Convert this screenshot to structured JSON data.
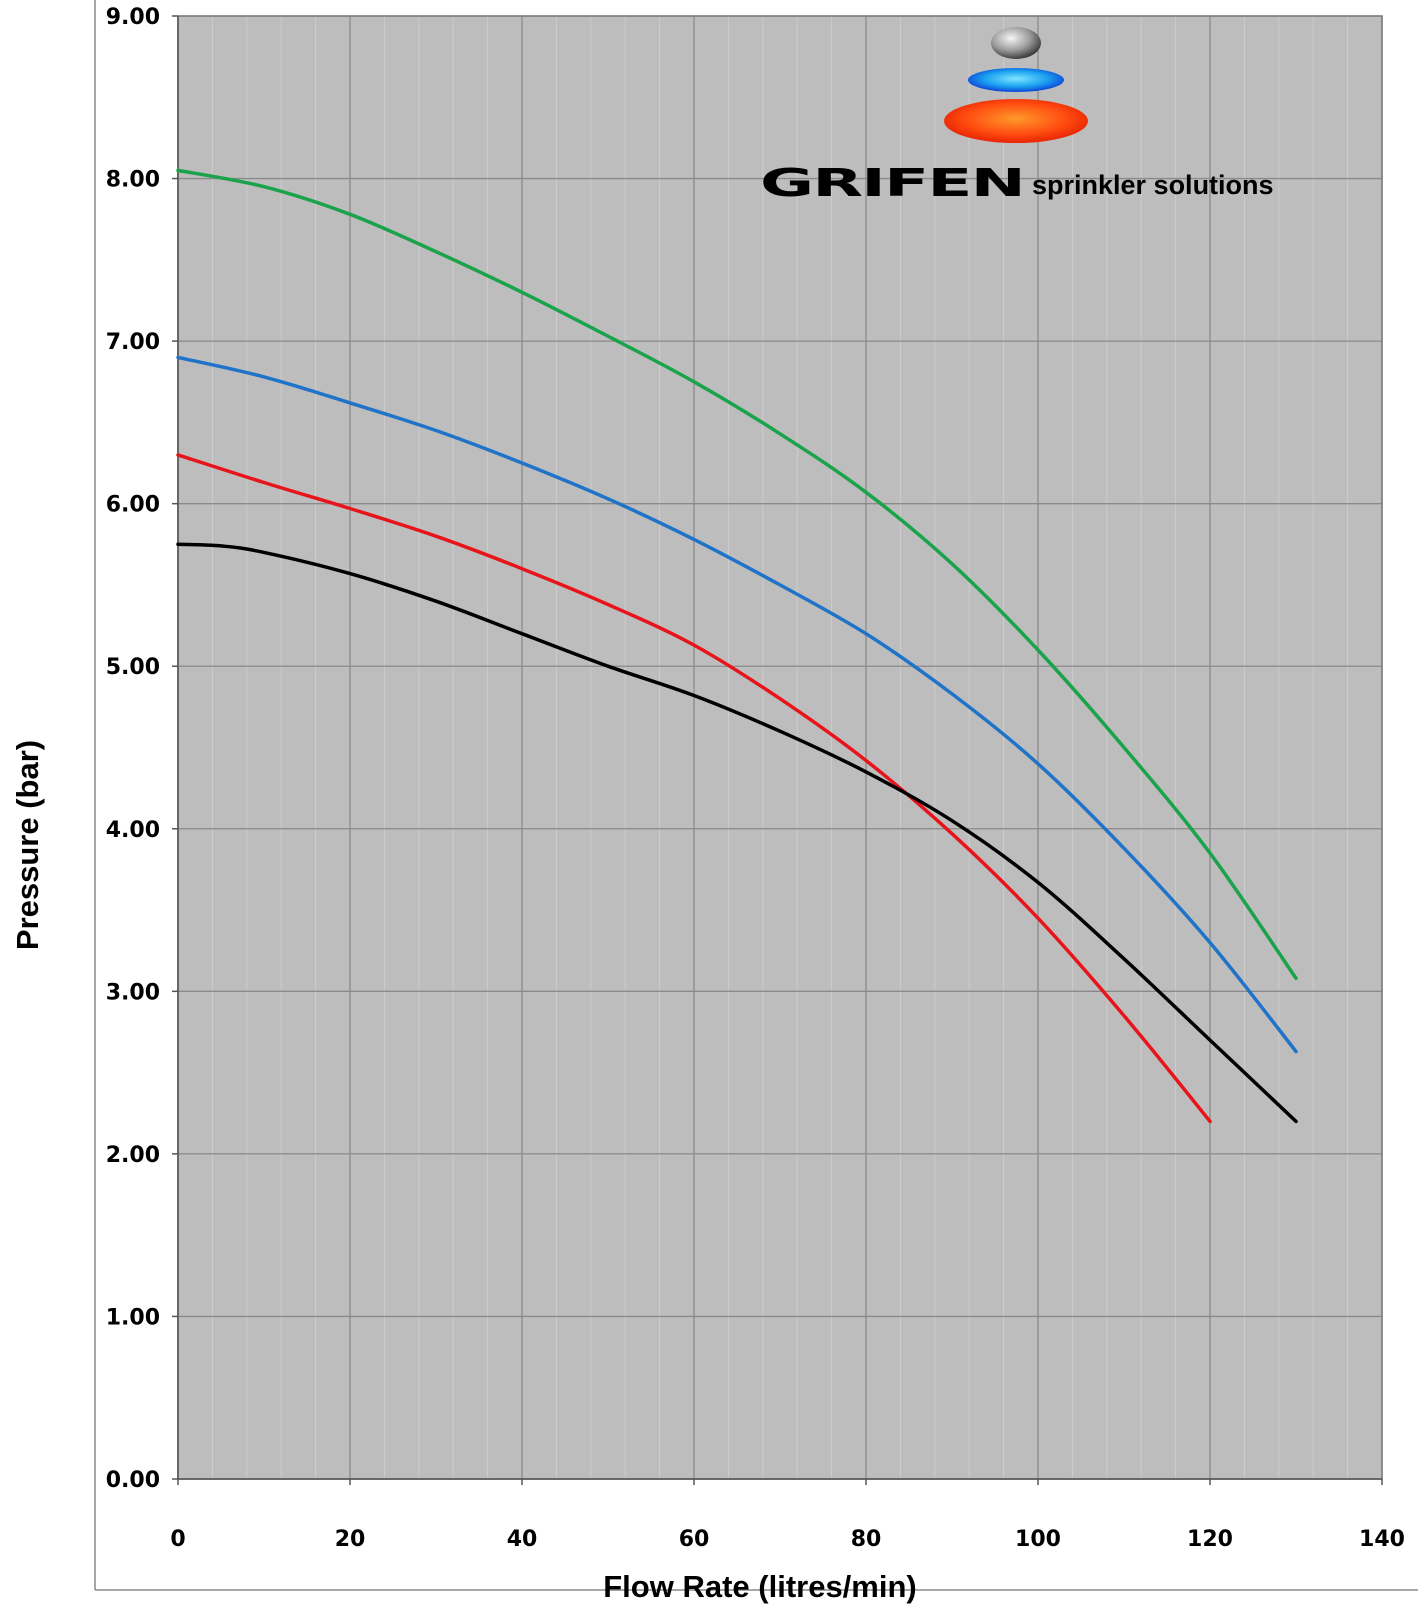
{
  "brand": {
    "name": "GRIFEN",
    "tagline": "sprinkler solutions"
  },
  "chart_data": {
    "type": "line",
    "title": "",
    "xlabel": "Flow Rate (litres/min)",
    "ylabel": "Pressure (bar)",
    "xlim": [
      0,
      140
    ],
    "ylim": [
      0,
      9
    ],
    "x_ticks": [
      0,
      20,
      40,
      60,
      80,
      100,
      120,
      140
    ],
    "x_tick_labels": [
      "0",
      "20",
      "40",
      "60",
      "80",
      "100",
      "120",
      "140"
    ],
    "y_ticks": [
      0,
      1,
      2,
      3,
      4,
      5,
      6,
      7,
      8,
      9
    ],
    "y_tick_labels": [
      "0.00",
      "1.00",
      "2.00",
      "3.00",
      "4.00",
      "5.00",
      "6.00",
      "7.00",
      "8.00",
      "9.00"
    ],
    "grid": true,
    "minor_x_grid_step": 4,
    "plot_background": "#bdbdbd",
    "legend": "none",
    "series": [
      {
        "color": "#1aa34a",
        "x": [
          0,
          10,
          20,
          30,
          40,
          50,
          60,
          70,
          80,
          90,
          100,
          110,
          120,
          130
        ],
        "y": [
          8.05,
          7.95,
          7.78,
          7.55,
          7.3,
          7.03,
          6.75,
          6.43,
          6.07,
          5.63,
          5.1,
          4.5,
          3.85,
          3.08
        ]
      },
      {
        "color": "#1f73c8",
        "x": [
          0,
          10,
          20,
          30,
          40,
          50,
          60,
          70,
          80,
          90,
          100,
          110,
          120,
          130
        ],
        "y": [
          6.9,
          6.78,
          6.62,
          6.45,
          6.25,
          6.03,
          5.78,
          5.5,
          5.2,
          4.83,
          4.4,
          3.88,
          3.3,
          2.63
        ]
      },
      {
        "color": "#e8141b",
        "x": [
          0,
          10,
          20,
          30,
          40,
          50,
          60,
          70,
          80,
          90,
          100,
          110,
          120
        ],
        "y": [
          6.3,
          6.13,
          5.97,
          5.8,
          5.6,
          5.38,
          5.13,
          4.8,
          4.42,
          3.97,
          3.45,
          2.85,
          2.2
        ]
      },
      {
        "color": "#000000",
        "x": [
          0,
          5,
          10,
          20,
          30,
          40,
          50,
          60,
          70,
          80,
          90,
          100,
          110,
          120,
          130
        ],
        "y": [
          5.75,
          5.74,
          5.7,
          5.57,
          5.4,
          5.2,
          5.0,
          4.82,
          4.6,
          4.35,
          4.05,
          3.67,
          3.2,
          2.7,
          2.2
        ]
      }
    ]
  }
}
